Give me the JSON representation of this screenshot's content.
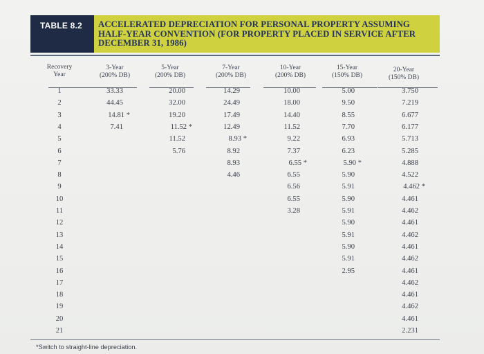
{
  "table": {
    "label": "TABLE 8.2",
    "title": "ACCELERATED DEPRECIATION FOR PERSONAL PROPERTY ASSUMING HALF-YEAR CONVENTION (FOR PROPERTY PLACED IN SERVICE AFTER DECEMBER 31, 1986)"
  },
  "columns": [
    {
      "line1": "Recovery",
      "line2": "Year"
    },
    {
      "line1": "3-Year",
      "line2": "(200% DB)"
    },
    {
      "line1": "5-Year",
      "line2": "(200% DB)"
    },
    {
      "line1": "7-Year",
      "line2": "(200% DB)"
    },
    {
      "line1": "10-Year",
      "line2": "(200% DB)"
    },
    {
      "line1": "15-Year",
      "line2": "(150% DB)"
    },
    {
      "line1": "20-Year",
      "line2": "(150% DB)"
    }
  ],
  "rows": [
    {
      "year": "1",
      "v": [
        "33.33",
        "20.00",
        "14.29",
        "10.00",
        "5.00",
        "3.750"
      ]
    },
    {
      "year": "2",
      "v": [
        "44.45",
        "32.00",
        "24.49",
        "18.00",
        "9.50",
        "7.219"
      ]
    },
    {
      "year": "3",
      "v": [
        "14.81 *",
        "19.20",
        "17.49",
        "14.40",
        "8.55",
        "6.677"
      ]
    },
    {
      "year": "4",
      "v": [
        "7.41",
        "11.52 *",
        "12.49",
        "11.52",
        "7.70",
        "6.177"
      ]
    },
    {
      "year": "5",
      "v": [
        "",
        "11.52",
        "8.93 *",
        "9.22",
        "6.93",
        "5.713"
      ]
    },
    {
      "year": "6",
      "v": [
        "",
        "5.76",
        "8.92",
        "7.37",
        "6.23",
        "5.285"
      ]
    },
    {
      "year": "7",
      "v": [
        "",
        "",
        "8.93",
        "6.55 *",
        "5.90 *",
        "4.888"
      ]
    },
    {
      "year": "8",
      "v": [
        "",
        "",
        "4.46",
        "6.55",
        "5.90",
        "4.522"
      ]
    },
    {
      "year": "9",
      "v": [
        "",
        "",
        "",
        "6.56",
        "5.91",
        "4.462 *"
      ]
    },
    {
      "year": "10",
      "v": [
        "",
        "",
        "",
        "6.55",
        "5.90",
        "4.461"
      ]
    },
    {
      "year": "11",
      "v": [
        "",
        "",
        "",
        "3.28",
        "5.91",
        "4.462"
      ]
    },
    {
      "year": "12",
      "v": [
        "",
        "",
        "",
        "",
        "5.90",
        "4.461"
      ]
    },
    {
      "year": "13",
      "v": [
        "",
        "",
        "",
        "",
        "5.91",
        "4.462"
      ]
    },
    {
      "year": "14",
      "v": [
        "",
        "",
        "",
        "",
        "5.90",
        "4.461"
      ]
    },
    {
      "year": "15",
      "v": [
        "",
        "",
        "",
        "",
        "5.91",
        "4.462"
      ]
    },
    {
      "year": "16",
      "v": [
        "",
        "",
        "",
        "",
        "2.95",
        "4.461"
      ]
    },
    {
      "year": "17",
      "v": [
        "",
        "",
        "",
        "",
        "",
        "4.462"
      ]
    },
    {
      "year": "18",
      "v": [
        "",
        "",
        "",
        "",
        "",
        "4.461"
      ]
    },
    {
      "year": "19",
      "v": [
        "",
        "",
        "",
        "",
        "",
        "4.462"
      ]
    },
    {
      "year": "20",
      "v": [
        "",
        "",
        "",
        "",
        "",
        "4.461"
      ]
    },
    {
      "year": "21",
      "v": [
        "",
        "",
        "",
        "",
        "",
        "2.231"
      ]
    }
  ],
  "footnote": "*Switch to straight-line depreciation."
}
